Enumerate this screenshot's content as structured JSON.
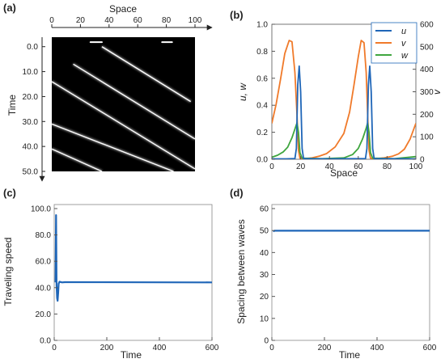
{
  "colors": {
    "u": "#1f66b8",
    "v": "#f07a2a",
    "w": "#3fa63f",
    "speed": "#1f66b8",
    "spacing": "#1f66b8",
    "kymo_bg": "#000000",
    "kymo_stripe": "#ffffff"
  },
  "chart_data": [
    {
      "id": "a",
      "panel_label": "(a)",
      "type": "heatmap",
      "xlabel": "Space",
      "ylabel": "Time",
      "x_ticks": [
        "0",
        "20",
        "40",
        "60",
        "80",
        "100"
      ],
      "y_ticks": [
        "0.0",
        "10.0",
        "20.0",
        "30.0",
        "40.0",
        "50.0"
      ],
      "xlim": [
        0,
        100
      ],
      "ylim": [
        -3.8,
        50
      ],
      "y_axis_direction": "downward",
      "grid": false,
      "wave_tracks": [
        {
          "x": [
            35,
            97
          ],
          "t": [
            0,
            22
          ]
        },
        {
          "x": [
            15,
            100
          ],
          "t": [
            7,
            37
          ]
        },
        {
          "x": [
            0,
            100
          ],
          "t": [
            14,
            49
          ]
        },
        {
          "x": [
            0,
            85
          ],
          "t": [
            31,
            50
          ]
        },
        {
          "x": [
            0,
            35
          ],
          "t": [
            41,
            50
          ]
        }
      ],
      "flat_fronts": [
        {
          "x": [
            27,
            35
          ],
          "t": [
            -1.8,
            -1.8
          ]
        },
        {
          "x": [
            77,
            84
          ],
          "t": [
            -1.8,
            -1.8
          ]
        }
      ]
    },
    {
      "id": "b",
      "panel_label": "(b)",
      "type": "line",
      "xlabel": "Space",
      "ylabel_left": "u, w",
      "ylabel_right": "v",
      "x_ticks": [
        "0",
        "20",
        "40",
        "60",
        "80",
        "100"
      ],
      "y_ticks_left": [
        "0.0",
        "0.2",
        "0.4",
        "0.6",
        "0.8",
        "1.0"
      ],
      "y_ticks_right": [
        "0",
        "100",
        "200",
        "300",
        "400",
        "500",
        "600"
      ],
      "xlim": [
        0,
        100
      ],
      "ylim_left": [
        0,
        1
      ],
      "ylim_right": [
        0,
        600
      ],
      "legend": "top-right",
      "grid": false,
      "series": [
        {
          "name": "u",
          "axis": "left",
          "points": [
            [
              0,
              0.003
            ],
            [
              10,
              0.003
            ],
            [
              16,
              0.005
            ],
            [
              17,
              0.08
            ],
            [
              18,
              0.55
            ],
            [
              19,
              0.69
            ],
            [
              20,
              0.5
            ],
            [
              21,
              0.08
            ],
            [
              22,
              0.005
            ],
            [
              40,
              0.003
            ],
            [
              65,
              0.005
            ],
            [
              66,
              0.08
            ],
            [
              67,
              0.55
            ],
            [
              68,
              0.69
            ],
            [
              69,
              0.5
            ],
            [
              70,
              0.08
            ],
            [
              71,
              0.005
            ],
            [
              100,
              0.003
            ]
          ]
        },
        {
          "name": "v",
          "axis": "right",
          "points": [
            [
              0,
              160
            ],
            [
              3,
              245
            ],
            [
              6,
              355
            ],
            [
              9,
              470
            ],
            [
              12,
              528
            ],
            [
              14,
              522
            ],
            [
              16,
              385
            ],
            [
              17.5,
              195
            ],
            [
              18.5,
              40
            ],
            [
              19.5,
              5
            ],
            [
              22,
              2
            ],
            [
              28,
              6
            ],
            [
              33,
              14
            ],
            [
              38,
              25
            ],
            [
              44,
              55
            ],
            [
              50,
              115
            ],
            [
              54,
              210
            ],
            [
              57,
              330
            ],
            [
              60,
              455
            ],
            [
              62,
              528
            ],
            [
              64,
              518
            ],
            [
              65.5,
              385
            ],
            [
              66.5,
              195
            ],
            [
              67.5,
              40
            ],
            [
              68.5,
              5
            ],
            [
              71,
              2
            ],
            [
              78,
              6
            ],
            [
              84,
              14
            ],
            [
              88,
              24
            ],
            [
              92,
              45
            ],
            [
              96,
              90
            ],
            [
              100,
              160
            ]
          ]
        },
        {
          "name": "w",
          "axis": "left",
          "points": [
            [
              0,
              0.015
            ],
            [
              4,
              0.03
            ],
            [
              8,
              0.055
            ],
            [
              11,
              0.09
            ],
            [
              14,
              0.16
            ],
            [
              16.5,
              0.24
            ],
            [
              17.5,
              0.27
            ],
            [
              18.5,
              0.2
            ],
            [
              19.5,
              0.05
            ],
            [
              21,
              0.008
            ],
            [
              35,
              0.004
            ],
            [
              50,
              0.01
            ],
            [
              56,
              0.035
            ],
            [
              60,
              0.08
            ],
            [
              63,
              0.15
            ],
            [
              65.5,
              0.23
            ],
            [
              66.5,
              0.27
            ],
            [
              67.5,
              0.2
            ],
            [
              68.5,
              0.05
            ],
            [
              70,
              0.008
            ],
            [
              85,
              0.004
            ],
            [
              100,
              0.02
            ]
          ]
        }
      ]
    },
    {
      "id": "c",
      "panel_label": "(c)",
      "type": "line",
      "xlabel": "Time",
      "ylabel": "Traveling speed",
      "x_ticks": [
        "0",
        "200",
        "400",
        "600"
      ],
      "y_ticks": [
        "0.0",
        "20.0",
        "40.0",
        "60.0",
        "80.0",
        "100.0"
      ],
      "xlim": [
        0,
        600
      ],
      "ylim": [
        0,
        100
      ],
      "grid": false,
      "series": [
        {
          "name": "",
          "points": [
            [
              5,
              44
            ],
            [
              7,
              95
            ],
            [
              9,
              42
            ],
            [
              11,
              32
            ],
            [
              13,
              30
            ],
            [
              15,
              36
            ],
            [
              17,
              43
            ],
            [
              20,
              44.5
            ],
            [
              30,
              44
            ],
            [
              40,
              44.2
            ],
            [
              600,
              44
            ]
          ]
        }
      ]
    },
    {
      "id": "d",
      "panel_label": "(d)",
      "type": "line",
      "xlabel": "Time",
      "ylabel": "Spacing between waves",
      "x_ticks": [
        "0",
        "200",
        "400",
        "600"
      ],
      "y_ticks": [
        "0",
        "10",
        "20",
        "30",
        "40",
        "50",
        "60"
      ],
      "xlim": [
        0,
        600
      ],
      "ylim": [
        0,
        60
      ],
      "grid": false,
      "series": [
        {
          "name": "",
          "points": [
            [
              5,
              49.6
            ],
            [
              10,
              49.9
            ],
            [
              600,
              49.9
            ]
          ]
        }
      ]
    }
  ]
}
